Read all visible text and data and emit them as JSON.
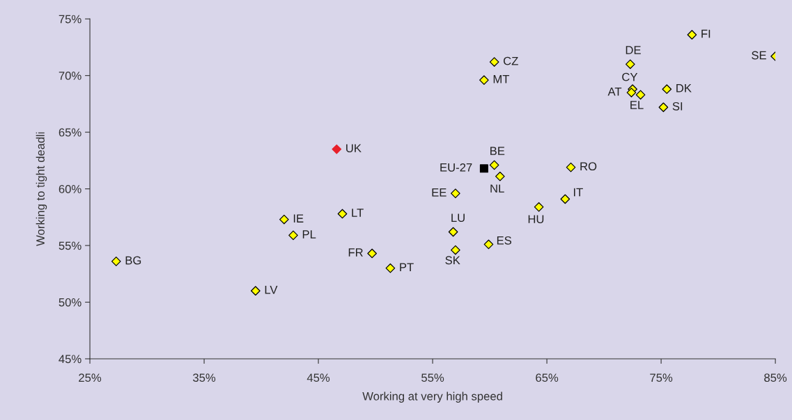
{
  "chart_data": {
    "type": "scatter",
    "xlabel": "Working at very high speed",
    "ylabel": "Working to tight deadli",
    "xlim": [
      25,
      85
    ],
    "ylim": [
      45,
      75
    ],
    "xticks": [
      {
        "value": 25,
        "label": "25%"
      },
      {
        "value": 35,
        "label": "35%"
      },
      {
        "value": 45,
        "label": "45%"
      },
      {
        "value": 55,
        "label": "55%"
      },
      {
        "value": 65,
        "label": "65%"
      },
      {
        "value": 75,
        "label": "75%"
      },
      {
        "value": 85,
        "label": "85%"
      }
    ],
    "yticks": [
      {
        "value": 45,
        "label": "45%"
      },
      {
        "value": 50,
        "label": "50%"
      },
      {
        "value": 55,
        "label": "55%"
      },
      {
        "value": 60,
        "label": "60%"
      },
      {
        "value": 65,
        "label": "65%"
      },
      {
        "value": 70,
        "label": "70%"
      },
      {
        "value": 75,
        "label": "75%"
      }
    ],
    "grid": false,
    "legend": false,
    "series": [
      {
        "color": "#ffff00",
        "marker": "diamond",
        "x": [
          27.3,
          39.5,
          42.0,
          42.8,
          47.1,
          49.7,
          51.3,
          57.0,
          56.8,
          57.0,
          59.9,
          60.4,
          60.9,
          60.4,
          59.5,
          64.3,
          66.6,
          67.1,
          72.3,
          72.5,
          72.4,
          73.2,
          75.5,
          75.2,
          77.7,
          85.0
        ],
        "values": [
          53.6,
          51.0,
          57.3,
          55.9,
          57.8,
          54.3,
          53.0,
          59.6,
          56.2,
          54.6,
          55.1,
          62.1,
          61.1,
          71.2,
          69.6,
          58.4,
          59.1,
          61.9,
          71.0,
          68.8,
          68.5,
          68.3,
          68.8,
          67.2,
          73.6,
          71.7
        ]
      },
      {
        "color": "#e8202a",
        "marker": "diamond",
        "x": [
          46.6
        ],
        "values": [
          63.5
        ]
      },
      {
        "color": "#000000",
        "marker": "square",
        "x": [
          59.5
        ],
        "values": [
          61.8
        ]
      }
    ],
    "annotations": [
      {
        "text": "BG",
        "x": 27.3,
        "y": 53.6
      },
      {
        "text": "LV",
        "x": 39.5,
        "y": 51.0
      },
      {
        "text": "IE",
        "x": 42.0,
        "y": 57.3
      },
      {
        "text": "PL",
        "x": 42.8,
        "y": 55.9
      },
      {
        "text": "LT",
        "x": 47.1,
        "y": 57.8
      },
      {
        "text": "FR",
        "x": 49.7,
        "y": 54.3
      },
      {
        "text": "PT",
        "x": 51.3,
        "y": 53.0
      },
      {
        "text": "UK",
        "x": 46.6,
        "y": 63.5
      },
      {
        "text": "EE",
        "x": 57.0,
        "y": 59.6
      },
      {
        "text": "LU",
        "x": 56.8,
        "y": 56.2
      },
      {
        "text": "SK",
        "x": 57.0,
        "y": 54.6
      },
      {
        "text": "ES",
        "x": 59.9,
        "y": 55.1
      },
      {
        "text": "EU-27",
        "x": 59.5,
        "y": 61.8
      },
      {
        "text": "BE",
        "x": 60.4,
        "y": 62.1
      },
      {
        "text": "NL",
        "x": 60.9,
        "y": 61.1
      },
      {
        "text": "CZ",
        "x": 60.4,
        "y": 71.2
      },
      {
        "text": "MT",
        "x": 59.5,
        "y": 69.6
      },
      {
        "text": "HU",
        "x": 64.3,
        "y": 58.4
      },
      {
        "text": "IT",
        "x": 66.6,
        "y": 59.1
      },
      {
        "text": "RO",
        "x": 67.1,
        "y": 61.9
      },
      {
        "text": "DE",
        "x": 72.3,
        "y": 71.0
      },
      {
        "text": "CY",
        "x": 72.5,
        "y": 68.8
      },
      {
        "text": "AT",
        "x": 72.4,
        "y": 68.5
      },
      {
        "text": "EL",
        "x": 73.2,
        "y": 68.3
      },
      {
        "text": "DK",
        "x": 75.5,
        "y": 68.8
      },
      {
        "text": "SI",
        "x": 75.2,
        "y": 67.2
      },
      {
        "text": "FI",
        "x": 77.7,
        "y": 73.6
      },
      {
        "text": "SE",
        "x": 85.0,
        "y": 71.7
      }
    ]
  }
}
